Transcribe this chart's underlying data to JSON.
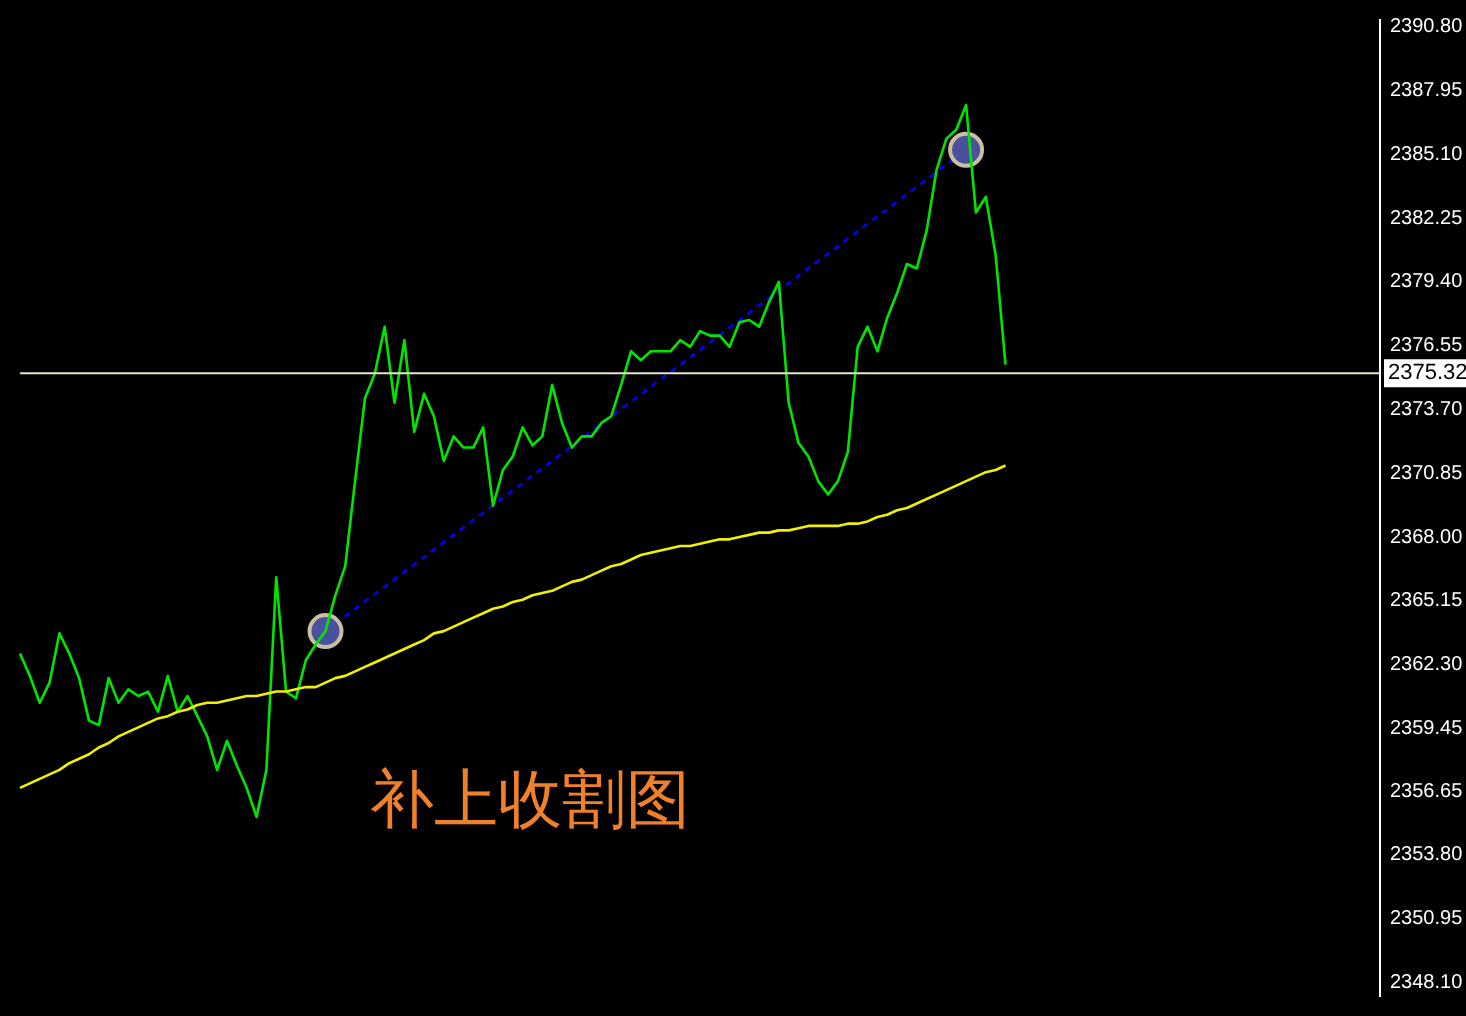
{
  "chart_data": {
    "type": "line",
    "tick_labels": "y",
    "categories": [
      null,
      null,
      null,
      null,
      null,
      null,
      null,
      null,
      null,
      null,
      null,
      null,
      null,
      null,
      null,
      null,
      null,
      null,
      null,
      null,
      null,
      null,
      null,
      null,
      null,
      null,
      null,
      null,
      null,
      null,
      null,
      null,
      null,
      null,
      null,
      null,
      null,
      null,
      null,
      null,
      null,
      null,
      null,
      null,
      null,
      null,
      null,
      null,
      null,
      null,
      null,
      null,
      null,
      null,
      null,
      null,
      null,
      null,
      null,
      null,
      null,
      null,
      null,
      null,
      null,
      null,
      null,
      null,
      null,
      null,
      null,
      null,
      null,
      null,
      null,
      null,
      null,
      null,
      null,
      null,
      null,
      null,
      null,
      null,
      null,
      null,
      null,
      null,
      null,
      null,
      null,
      null,
      null,
      null,
      null,
      null,
      null,
      null,
      null,
      null,
      null,
      null,
      null,
      null,
      null,
      null,
      null,
      null,
      null,
      null,
      null,
      null,
      null,
      null,
      null,
      null,
      null,
      null,
      null,
      null,
      null,
      null,
      null,
      null,
      null,
      null,
      null,
      null,
      null,
      null,
      null,
      null,
      null,
      null,
      null,
      null,
      null,
      null,
      null
    ],
    "ylim": [
      2347.5,
      2391.1
    ],
    "yticks": [
      {
        "value": 2348.1,
        "label": "2348.10"
      },
      {
        "value": 2350.95,
        "label": "2350.95"
      },
      {
        "value": 2353.8,
        "label": "2353.80"
      },
      {
        "value": 2356.65,
        "label": "2356.65"
      },
      {
        "value": 2359.45,
        "label": "2359.45"
      },
      {
        "value": 2362.3,
        "label": "2362.30"
      },
      {
        "value": 2365.15,
        "label": "2365.15"
      },
      {
        "value": 2368,
        "label": "2368.00"
      },
      {
        "value": 2370.85,
        "label": "2370.85"
      },
      {
        "value": 2373.7,
        "label": "2373.70"
      },
      {
        "value": 2376.55,
        "label": "2376.55"
      },
      {
        "value": 2379.4,
        "label": "2379.40"
      },
      {
        "value": 2382.25,
        "label": "2382.25"
      },
      {
        "value": 2385.1,
        "label": "2385.10"
      },
      {
        "value": 2387.95,
        "label": "2387.95"
      },
      {
        "value": 2390.8,
        "label": "2390.80"
      }
    ],
    "series": [
      {
        "color": "#f0f000",
        "values": [
          2356.8,
          2357.0,
          2357.2,
          2357.4,
          2357.6,
          2357.9,
          2358.1,
          2358.3,
          2358.6,
          2358.8,
          2359.1,
          2359.3,
          2359.5,
          2359.7,
          2359.9,
          2360.0,
          2360.2,
          2360.3,
          2360.5,
          2360.6,
          2360.6,
          2360.7,
          2360.8,
          2360.9,
          2360.9,
          2361.0,
          2361.1,
          2361.1,
          2361.2,
          2361.3,
          2361.3,
          2361.5,
          2361.7,
          2361.8,
          2362.0,
          2362.2,
          2362.4,
          2362.6,
          2362.8,
          2363.0,
          2363.2,
          2363.4,
          2363.7,
          2363.8,
          2364.0,
          2364.2,
          2364.4,
          2364.6,
          2364.8,
          2364.9,
          2365.1,
          2365.2,
          2365.4,
          2365.5,
          2365.6,
          2365.8,
          2366.0,
          2366.1,
          2366.3,
          2366.5,
          2366.7,
          2366.8,
          2367.0,
          2367.2,
          2367.3,
          2367.4,
          2367.5,
          2367.6,
          2367.6,
          2367.7,
          2367.8,
          2367.9,
          2367.9,
          2368.0,
          2368.1,
          2368.2,
          2368.2,
          2368.3,
          2368.3,
          2368.4,
          2368.5,
          2368.5,
          2368.5,
          2368.5,
          2368.6,
          2368.6,
          2368.7,
          2368.9,
          2369.0,
          2369.2,
          2369.3,
          2369.5,
          2369.7,
          2369.9,
          2370.1,
          2370.3,
          2370.5,
          2370.7,
          2370.9,
          2371.0,
          2371.2,
          null,
          null,
          null,
          null,
          null,
          null,
          null,
          null,
          null,
          null,
          null,
          null,
          null,
          null,
          null,
          null,
          null,
          null,
          null,
          null,
          null,
          null,
          null,
          null,
          null,
          null,
          null,
          null,
          null,
          null,
          null,
          null,
          null,
          null,
          null,
          null,
          null,
          null
        ]
      },
      {
        "color": "#00e600",
        "values": [
          2362.8,
          2361.8,
          2360.6,
          2361.5,
          2363.7,
          2362.8,
          2361.7,
          2359.8,
          2359.6,
          2361.7,
          2360.6,
          2361.2,
          2360.9,
          2361.1,
          2360.2,
          2361.8,
          2360.2,
          2360.9,
          2360.0,
          2359.1,
          2357.6,
          2358.9,
          2357.8,
          2356.8,
          2355.5,
          2357.6,
          2366.2,
          2361.1,
          2360.8,
          2362.5,
          2363.2,
          2363.8,
          2365.4,
          2366.7,
          2370.5,
          2374.2,
          2375.3,
          2377.4,
          2374.0,
          2376.8,
          2372.7,
          2374.4,
          2373.4,
          2371.4,
          2372.5,
          2372.0,
          2372.0,
          2372.9,
          2369.4,
          2371.0,
          2371.6,
          2372.9,
          2372.1,
          2372.5,
          2374.8,
          2373.1,
          2372.0,
          2372.5,
          2372.5,
          2373.1,
          2373.4,
          2374.8,
          2376.3,
          2375.9,
          2376.3,
          2376.3,
          2376.3,
          2376.8,
          2376.5,
          2377.2,
          2377.0,
          2377.0,
          2376.5,
          2377.6,
          2377.7,
          2377.4,
          2378.5,
          2379.4,
          2374.0,
          2372.2,
          2371.6,
          2370.5,
          2369.9,
          2370.5,
          2371.8,
          2376.5,
          2377.4,
          2376.3,
          2377.8,
          2378.9,
          2380.2,
          2380.0,
          2381.7,
          2384.4,
          2385.8,
          2386.2,
          2387.3,
          2382.5,
          2383.2,
          2380.6,
          2375.7,
          null,
          null,
          null,
          null,
          null,
          null,
          null,
          null,
          null,
          null,
          null,
          null,
          null,
          null,
          null,
          null,
          null,
          null,
          null,
          null,
          null,
          null,
          null,
          null,
          null,
          null,
          null,
          null,
          null,
          null,
          null,
          null,
          null,
          null,
          null,
          null,
          null,
          null
        ]
      },
      {
        "color": "#0000ff",
        "line_style": "dashed",
        "marker": "circle",
        "values": [
          null,
          null,
          null,
          null,
          null,
          null,
          null,
          null,
          null,
          null,
          null,
          null,
          null,
          null,
          null,
          null,
          null,
          null,
          null,
          null,
          null,
          null,
          null,
          null,
          null,
          null,
          null,
          null,
          null,
          null,
          null,
          2363.8,
          null,
          null,
          null,
          null,
          null,
          null,
          null,
          null,
          null,
          null,
          null,
          null,
          null,
          null,
          null,
          null,
          null,
          null,
          null,
          null,
          null,
          null,
          null,
          null,
          null,
          null,
          null,
          null,
          null,
          null,
          null,
          null,
          null,
          null,
          null,
          null,
          null,
          null,
          null,
          null,
          null,
          null,
          null,
          null,
          null,
          null,
          null,
          null,
          null,
          null,
          null,
          null,
          null,
          null,
          null,
          null,
          null,
          null,
          null,
          null,
          null,
          null,
          null,
          null,
          2385.3,
          null,
          null,
          null,
          null,
          null,
          null,
          null,
          null,
          null,
          null,
          null,
          null,
          null,
          null,
          null,
          null,
          null,
          null,
          null,
          null,
          null,
          null,
          null,
          null,
          null,
          null,
          null,
          null,
          null,
          null,
          null,
          null,
          null,
          null,
          null,
          null,
          null,
          null,
          null,
          null,
          null,
          null
        ]
      }
    ],
    "ref_lines": [
      {
        "axis": "y",
        "value": 2375.32,
        "label": "2375.32",
        "color": "#e8e4c8"
      }
    ],
    "annotations": [
      "补上收割图"
    ]
  }
}
